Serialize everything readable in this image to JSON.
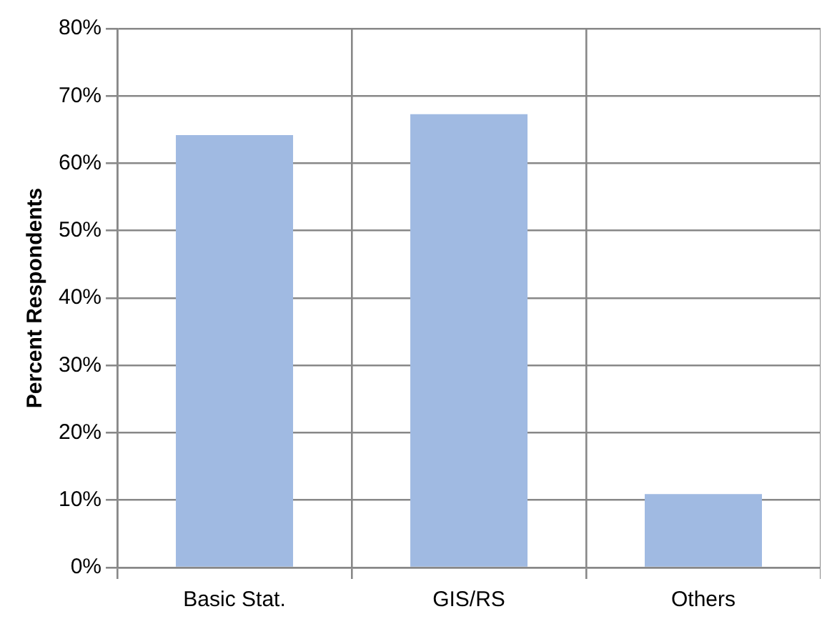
{
  "chart_data": {
    "type": "bar",
    "ylabel": "Percent Respondents",
    "categories": [
      "Basic Stat.",
      "GIS/RS",
      "Others"
    ],
    "values": [
      64.2,
      67.3,
      10.9
    ],
    "color": "#a0bae2",
    "ylim": [
      0,
      80
    ],
    "yticks": [
      {
        "value": 0,
        "label": "0%"
      },
      {
        "value": 10,
        "label": "10%"
      },
      {
        "value": 20,
        "label": "20%"
      },
      {
        "value": 30,
        "label": "30%"
      },
      {
        "value": 40,
        "label": "40%"
      },
      {
        "value": 50,
        "label": "50%"
      },
      {
        "value": 60,
        "label": "60%"
      },
      {
        "value": 70,
        "label": "70%"
      },
      {
        "value": 80,
        "label": "80%"
      }
    ],
    "grid": true
  }
}
